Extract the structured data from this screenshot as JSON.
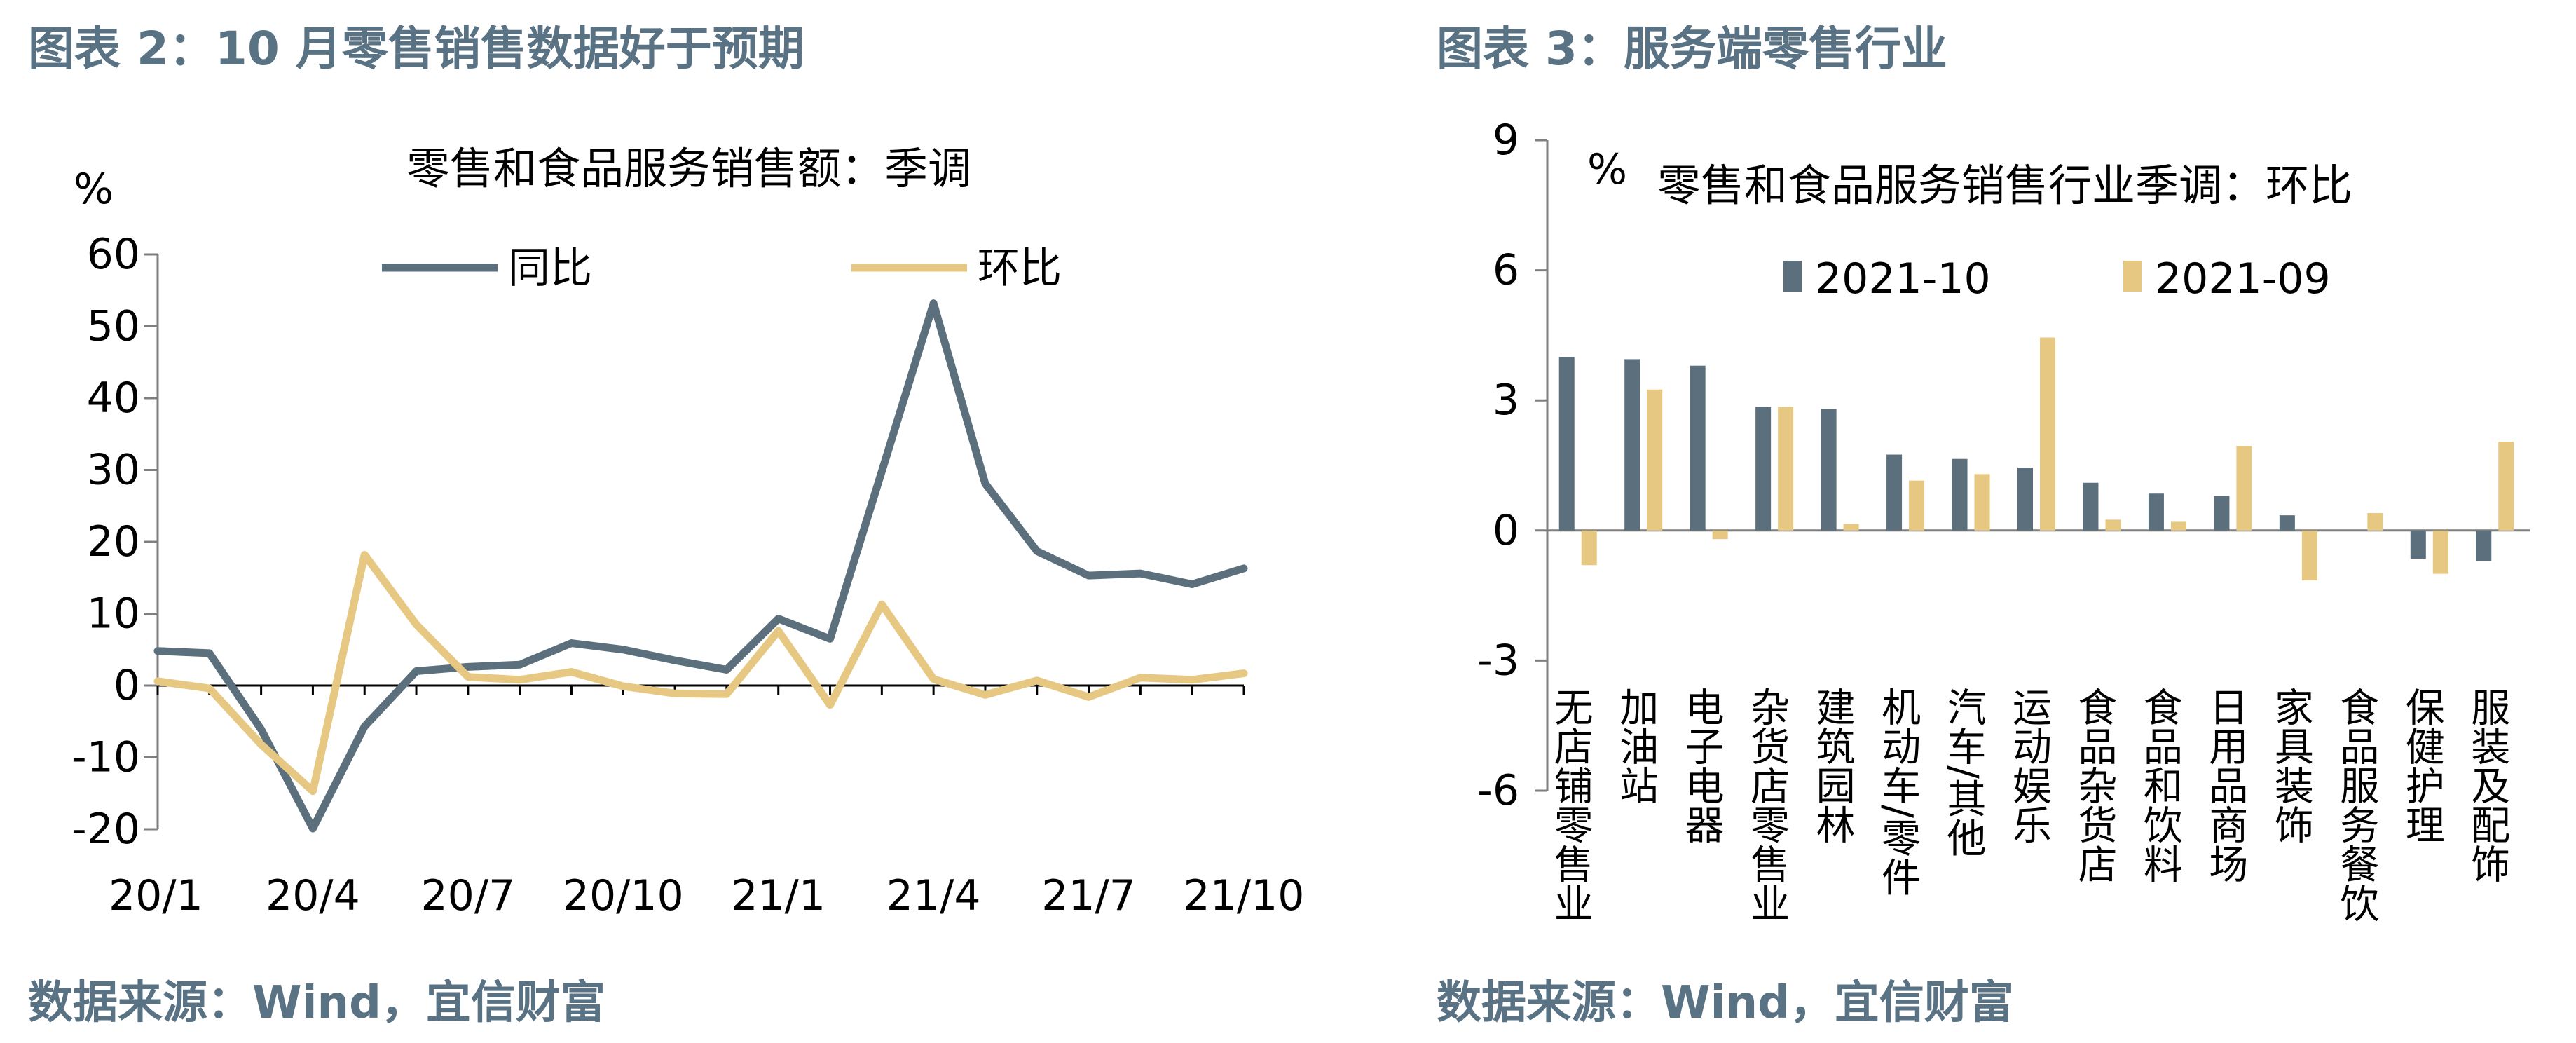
{
  "colors": {
    "header": "#5a7384",
    "yoy": "#5b6f7d",
    "mom": "#e6c882",
    "bar_oct": "#5b6f7d",
    "bar_sep": "#e6c882",
    "axis": "#7f7f7f"
  },
  "left_panel": {
    "header": "图表 2：10 月零售销售数据好于预期",
    "source": "数据来源：Wind，宜信财富"
  },
  "right_panel": {
    "header": "图表 3：服务端零售行业",
    "source": "数据来源：Wind，宜信财富"
  },
  "chart_data": [
    {
      "type": "line",
      "title": "零售和食品服务销售额：季调",
      "ylabel": "%",
      "ylim": [
        -20,
        60
      ],
      "yticks": [
        -20,
        -10,
        0,
        10,
        20,
        30,
        40,
        50,
        60
      ],
      "xticks": [
        "20/1",
        "20/4",
        "20/7",
        "20/10",
        "21/1",
        "21/4",
        "21/7",
        "21/10"
      ],
      "x": [
        "20/1",
        "20/2",
        "20/3",
        "20/4",
        "20/5",
        "20/6",
        "20/7",
        "20/8",
        "20/9",
        "20/10",
        "20/11",
        "20/12",
        "21/1",
        "21/2",
        "21/3",
        "21/4",
        "21/5",
        "21/6",
        "21/7",
        "21/8",
        "21/9",
        "21/10"
      ],
      "legend": "top",
      "series": [
        {
          "name": "同比",
          "values": [
            4.8,
            4.5,
            -6.1,
            -19.9,
            -5.7,
            2.0,
            2.6,
            2.9,
            5.9,
            5.0,
            3.5,
            2.2,
            9.3,
            6.5,
            29.8,
            53.2,
            28.1,
            18.7,
            15.3,
            15.6,
            14.1,
            16.3
          ]
        },
        {
          "name": "环比",
          "values": [
            0.6,
            -0.4,
            -8.2,
            -14.7,
            18.2,
            8.5,
            1.2,
            0.8,
            1.9,
            -0.1,
            -1.1,
            -1.2,
            7.6,
            -2.7,
            11.3,
            0.9,
            -1.3,
            0.7,
            -1.6,
            1.1,
            0.8,
            1.7
          ]
        }
      ]
    },
    {
      "type": "bar",
      "title": "零售和食品服务销售行业季调：环比",
      "ylabel": "%",
      "ylim": [
        -6,
        9
      ],
      "yticks": [
        -6,
        -3,
        0,
        3,
        6,
        9
      ],
      "legend": "top",
      "categories": [
        "无店铺零售业",
        "加油站",
        "电子电器",
        "杂货店零售业",
        "建筑园林",
        "机动车/零件",
        "汽车/其他",
        "运动娱乐",
        "食品杂货店",
        "食品和饮料",
        "日用品商场",
        "家具装饰",
        "食品服务餐饮",
        "保健护理",
        "服装及配饰"
      ],
      "series": [
        {
          "name": "2021-10",
          "values": [
            4.0,
            3.95,
            3.8,
            2.85,
            2.8,
            1.75,
            1.65,
            1.45,
            1.1,
            0.85,
            0.8,
            0.35,
            0.0,
            -0.65,
            -0.7
          ]
        },
        {
          "name": "2021-09",
          "values": [
            -0.8,
            3.25,
            -0.2,
            2.85,
            0.15,
            1.15,
            1.3,
            4.45,
            0.25,
            0.2,
            1.95,
            -1.15,
            0.4,
            -1.0,
            2.05
          ]
        }
      ]
    }
  ]
}
